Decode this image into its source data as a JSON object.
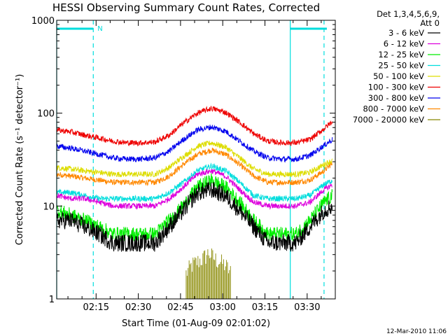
{
  "chart_data": {
    "type": "line",
    "title": "HESSI Observing Summary Count Rates, Corrected",
    "xlabel": "Start Time (01-Aug-09 02:01:02)",
    "ylabel": "Corrected Count Rate (s⁻¹ detector⁻¹)",
    "yscale": "log",
    "ylim": [
      1,
      1000
    ],
    "xlim_minutes": [
      0,
      99
    ],
    "y_tick_labels": [
      "1",
      "10",
      "100",
      "1000"
    ],
    "x_ticks": [
      {
        "minute": 14,
        "label": "02:15"
      },
      {
        "minute": 29,
        "label": "02:30"
      },
      {
        "minute": 44,
        "label": "02:45"
      },
      {
        "minute": 59,
        "label": "03:00"
      },
      {
        "minute": 74,
        "label": "03:15"
      },
      {
        "minute": 89,
        "label": "03:30"
      }
    ],
    "legend_header": [
      "Det 1,3,4,5,6,9,",
      "Att 0"
    ],
    "series": [
      {
        "name": "3 - 6 keV",
        "color": "#000000",
        "x": [
          0,
          5,
          10,
          15,
          20,
          25,
          30,
          35,
          40,
          45,
          50,
          55,
          60,
          65,
          70,
          75,
          80,
          85,
          90,
          95,
          98
        ],
        "y": [
          7,
          7,
          6,
          5,
          4,
          4,
          4,
          4,
          6,
          9,
          14,
          15,
          13,
          9,
          6,
          4,
          4,
          4,
          6,
          9,
          10
        ]
      },
      {
        "name": "6 - 12 keV",
        "color": "#dd00dd",
        "x": [
          0,
          5,
          10,
          15,
          20,
          25,
          30,
          35,
          40,
          45,
          50,
          55,
          60,
          65,
          70,
          75,
          80,
          85,
          90,
          95,
          98
        ],
        "y": [
          13,
          12,
          12,
          11,
          10,
          10,
          10,
          10,
          12,
          16,
          22,
          24,
          21,
          15,
          11,
          10,
          10,
          10,
          11,
          15,
          17
        ]
      },
      {
        "name": "12 - 25 keV",
        "color": "#00ee00",
        "x": [
          0,
          5,
          10,
          15,
          20,
          25,
          30,
          35,
          40,
          45,
          50,
          55,
          60,
          65,
          70,
          75,
          80,
          85,
          90,
          95,
          98
        ],
        "y": [
          9,
          8,
          7,
          6,
          5,
          5,
          5,
          5,
          7,
          10,
          16,
          19,
          16,
          11,
          7,
          5,
          5,
          5,
          7,
          11,
          13
        ]
      },
      {
        "name": "25 - 50 keV",
        "color": "#00dddd",
        "x": [
          0,
          5,
          10,
          15,
          20,
          25,
          30,
          35,
          40,
          45,
          50,
          55,
          60,
          65,
          70,
          75,
          80,
          85,
          90,
          95,
          98
        ],
        "y": [
          14,
          14,
          13,
          12,
          12,
          12,
          12,
          12,
          14,
          18,
          24,
          27,
          24,
          18,
          13,
          12,
          12,
          12,
          13,
          17,
          19
        ]
      },
      {
        "name": "50 - 100 keV",
        "color": "#dddd00",
        "x": [
          0,
          5,
          10,
          15,
          20,
          25,
          30,
          35,
          40,
          45,
          50,
          55,
          60,
          65,
          70,
          75,
          80,
          85,
          90,
          95,
          98
        ],
        "y": [
          26,
          25,
          24,
          23,
          22,
          22,
          22,
          22,
          26,
          34,
          44,
          48,
          43,
          33,
          25,
          22,
          22,
          22,
          23,
          28,
          31
        ]
      },
      {
        "name": "100 - 300 keV",
        "color": "#ee0000",
        "x": [
          0,
          5,
          10,
          15,
          20,
          25,
          30,
          35,
          40,
          45,
          50,
          55,
          60,
          65,
          70,
          75,
          80,
          85,
          90,
          95,
          98
        ],
        "y": [
          66,
          63,
          58,
          54,
          50,
          48,
          48,
          49,
          58,
          78,
          100,
          113,
          102,
          80,
          60,
          50,
          48,
          48,
          52,
          68,
          82
        ]
      },
      {
        "name": "300 - 800 keV",
        "color": "#0000ee",
        "x": [
          0,
          5,
          10,
          15,
          20,
          25,
          30,
          35,
          40,
          45,
          50,
          55,
          60,
          65,
          70,
          75,
          80,
          85,
          90,
          95,
          98
        ],
        "y": [
          44,
          42,
          39,
          36,
          33,
          32,
          32,
          33,
          39,
          52,
          66,
          71,
          64,
          50,
          39,
          33,
          32,
          32,
          35,
          45,
          52
        ]
      },
      {
        "name": "800 - 7000 keV",
        "color": "#ff8800",
        "x": [
          0,
          5,
          10,
          15,
          20,
          25,
          30,
          35,
          40,
          45,
          50,
          55,
          60,
          65,
          70,
          75,
          80,
          85,
          90,
          95,
          98
        ],
        "y": [
          22,
          21,
          20,
          19,
          18,
          18,
          18,
          18,
          21,
          28,
          36,
          40,
          36,
          28,
          21,
          18,
          18,
          18,
          19,
          24,
          29
        ]
      },
      {
        "name": "7000 - 20000 keV",
        "color": "#888800",
        "x": [
          46,
          48,
          50,
          52,
          54,
          56,
          58,
          60,
          62
        ],
        "y": [
          1.8,
          2.2,
          2.4,
          2.6,
          3.0,
          2.6,
          2.4,
          2.2,
          1.8
        ]
      }
    ],
    "annotations": {
      "top_left_marker": "N",
      "dashed_time_markers_min": [
        13,
        95
      ],
      "solid_time_markers_min": [
        0,
        83
      ],
      "date_stamp": "12-Mar-2010 11:06"
    }
  }
}
